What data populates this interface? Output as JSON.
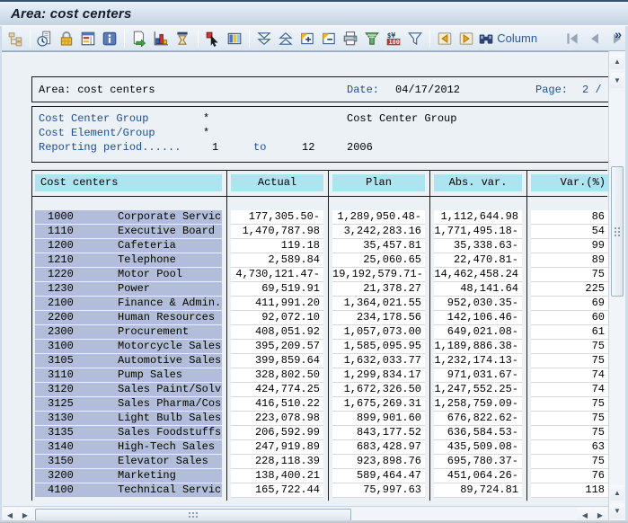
{
  "window": {
    "title": "Area: cost centers"
  },
  "toolbar": {
    "column_label": "Column",
    "more_label": "»",
    "icons": [
      "hierarchy",
      "performance-overview",
      "lock",
      "ledger",
      "info",
      "export",
      "chart",
      "selection-time",
      "select-detail",
      "columns",
      "sort-descending",
      "sort-ascending",
      "expand",
      "collapse",
      "print",
      "top-n",
      "currency-format",
      "filter",
      "previous-column",
      "next-column",
      "find-column",
      "nav-first",
      "nav-previous",
      "nav-next",
      "more-options"
    ]
  },
  "report": {
    "header": {
      "area": "Area: cost centers",
      "date_label": "Date:",
      "date_value": "04/17/2012",
      "page_label": "Page:",
      "page_value": "2 /"
    },
    "params": [
      {
        "label": "Cost Center Group",
        "value": "*",
        "extra": "Cost Center Group"
      },
      {
        "label": "Cost Element/Group",
        "value": "*",
        "extra": ""
      },
      {
        "label": "Reporting period......",
        "from": "1",
        "to_label": "to",
        "to": "12",
        "year": "2006"
      }
    ]
  },
  "table": {
    "columns": [
      "Cost centers",
      "Actual",
      "Plan",
      "Abs. var.",
      "Var.(%)"
    ],
    "rows": [
      {
        "code": "1000",
        "name": "Corporate Servic",
        "actual": "177,305.50-",
        "plan": "1,289,950.48-",
        "abs_var": "1,112,644.98",
        "var_pct": "86"
      },
      {
        "code": "1110",
        "name": "Executive Board",
        "actual": "1,470,787.98",
        "plan": "3,242,283.16",
        "abs_var": "1,771,495.18-",
        "var_pct": "54"
      },
      {
        "code": "1200",
        "name": "Cafeteria",
        "actual": "119.18",
        "plan": "35,457.81",
        "abs_var": "35,338.63-",
        "var_pct": "99"
      },
      {
        "code": "1210",
        "name": "Telephone",
        "actual": "2,589.84",
        "plan": "25,060.65",
        "abs_var": "22,470.81-",
        "var_pct": "89"
      },
      {
        "code": "1220",
        "name": "Motor Pool",
        "actual": "4,730,121.47-",
        "plan": "19,192,579.71-",
        "abs_var": "14,462,458.24",
        "var_pct": "75"
      },
      {
        "code": "1230",
        "name": "Power",
        "actual": "69,519.91",
        "plan": "21,378.27",
        "abs_var": "48,141.64",
        "var_pct": "225"
      },
      {
        "code": "2100",
        "name": "Finance & Admin.",
        "actual": "411,991.20",
        "plan": "1,364,021.55",
        "abs_var": "952,030.35-",
        "var_pct": "69"
      },
      {
        "code": "2200",
        "name": "Human Resources",
        "actual": "92,072.10",
        "plan": "234,178.56",
        "abs_var": "142,106.46-",
        "var_pct": "60"
      },
      {
        "code": "2300",
        "name": "Procurement",
        "actual": "408,051.92",
        "plan": "1,057,073.00",
        "abs_var": "649,021.08-",
        "var_pct": "61"
      },
      {
        "code": "3100",
        "name": "Motorcycle Sales",
        "actual": "395,209.57",
        "plan": "1,585,095.95",
        "abs_var": "1,189,886.38-",
        "var_pct": "75"
      },
      {
        "code": "3105",
        "name": "Automotive Sales",
        "actual": "399,859.64",
        "plan": "1,632,033.77",
        "abs_var": "1,232,174.13-",
        "var_pct": "75"
      },
      {
        "code": "3110",
        "name": "Pump Sales",
        "actual": "328,802.50",
        "plan": "1,299,834.17",
        "abs_var": "971,031.67-",
        "var_pct": "74"
      },
      {
        "code": "3120",
        "name": "Sales Paint/Solv",
        "actual": "424,774.25",
        "plan": "1,672,326.50",
        "abs_var": "1,247,552.25-",
        "var_pct": "74"
      },
      {
        "code": "3125",
        "name": "Sales Pharma/Cos",
        "actual": "416,510.22",
        "plan": "1,675,269.31",
        "abs_var": "1,258,759.09-",
        "var_pct": "75"
      },
      {
        "code": "3130",
        "name": "Light Bulb Sales",
        "actual": "223,078.98",
        "plan": "899,901.60",
        "abs_var": "676,822.62-",
        "var_pct": "75"
      },
      {
        "code": "3135",
        "name": "Sales Foodstuffs",
        "actual": "206,592.99",
        "plan": "843,177.52",
        "abs_var": "636,584.53-",
        "var_pct": "75"
      },
      {
        "code": "3140",
        "name": "High-Tech Sales",
        "actual": "247,919.89",
        "plan": "683,428.97",
        "abs_var": "435,509.08-",
        "var_pct": "63"
      },
      {
        "code": "3150",
        "name": "Elevator Sales",
        "actual": "228,118.39",
        "plan": "923,898.76",
        "abs_var": "695,780.37-",
        "var_pct": "75"
      },
      {
        "code": "3200",
        "name": "Marketing",
        "actual": "138,400.21",
        "plan": "589,464.47",
        "abs_var": "451,064.26-",
        "var_pct": "76"
      },
      {
        "code": "4100",
        "name": "Technical Servic",
        "actual": "165,722.44",
        "plan": "75,997.63",
        "abs_var": "89,724.81",
        "var_pct": "118"
      }
    ]
  },
  "colors": {
    "label-blue": "#1f4e8f",
    "header-cell": "#ace4f0",
    "name-cell": "#b1bdda",
    "title-bar": "#c2d3e3",
    "toolbar-bg": "#e4edf4"
  }
}
